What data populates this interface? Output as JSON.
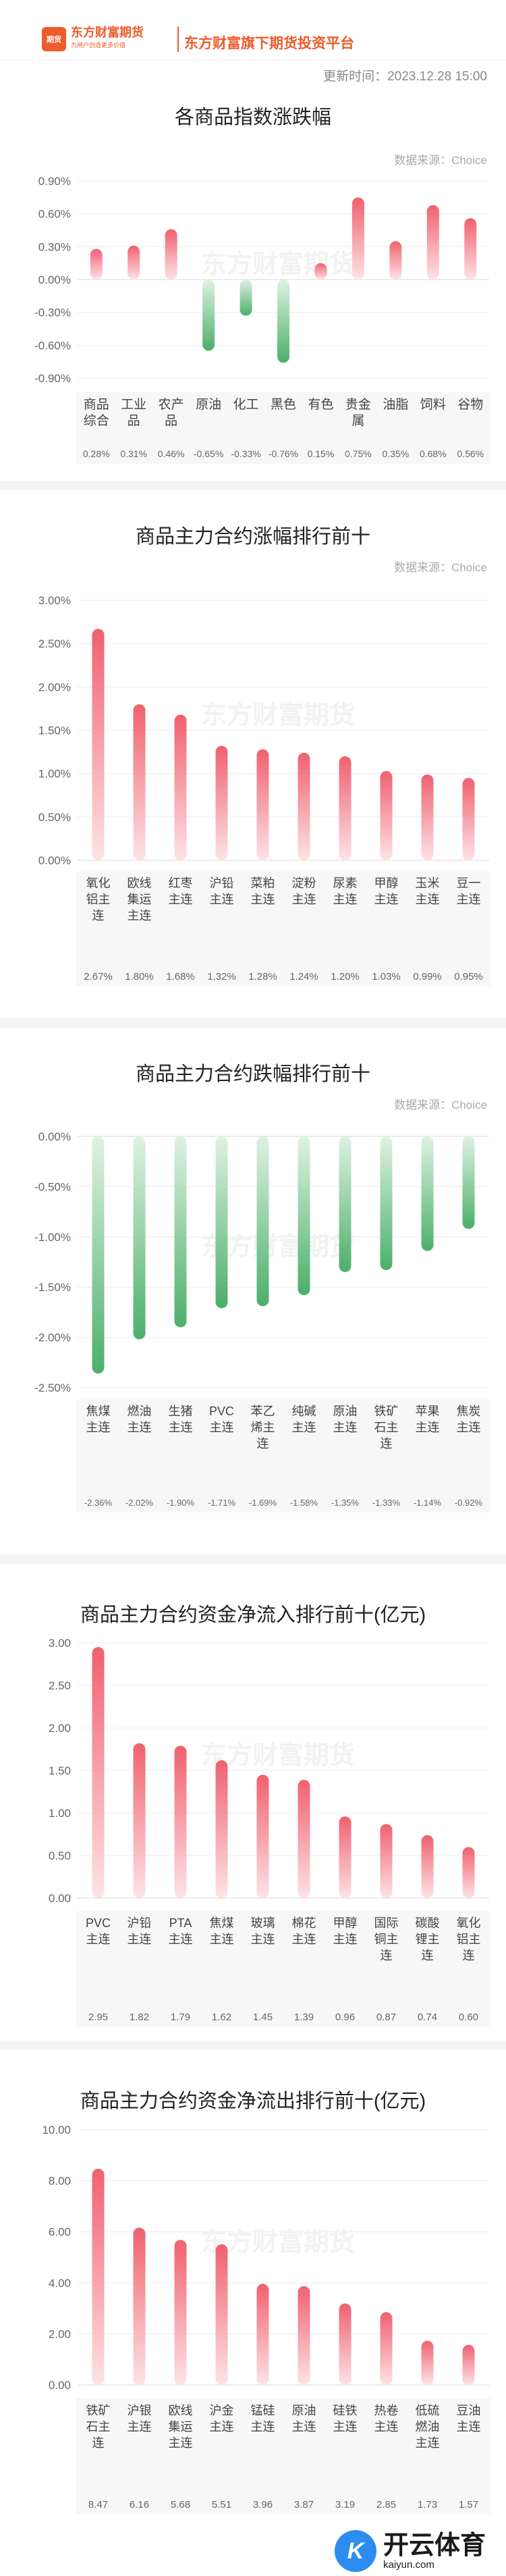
{
  "header": {
    "logo_mark": "期货",
    "logo_name": "东方财富期货",
    "logo_slogan": "为用户创造更多价值",
    "platform": "东方财富旗下期货投资平台",
    "update_time": "更新时间：2023.12.28 15:00"
  },
  "charts": [
    {
      "title": "各商品指数涨跌幅",
      "source": "数据来源：Choice",
      "watermark": "东方财富期货",
      "chart_data": {
        "type": "bar",
        "categories": [
          "商品\n综合",
          "工业\n品",
          "农产\n品",
          "原油",
          "化工",
          "黑色",
          "有色",
          "贵金\n属",
          "油脂",
          "饲料",
          "谷物"
        ],
        "values": [
          0.28,
          0.31,
          0.46,
          -0.65,
          -0.33,
          -0.76,
          0.15,
          0.75,
          0.35,
          0.68,
          0.56
        ],
        "value_labels": [
          "0.28%",
          "0.31%",
          "0.46%",
          "-0.65%",
          "-0.33%",
          "-0.76%",
          "0.15%",
          "0.75%",
          "0.35%",
          "0.68%",
          "0.56%"
        ],
        "yticks": [
          0.9,
          0.6,
          0.3,
          0,
          -0.3,
          -0.6,
          -0.9
        ],
        "ytick_labels": [
          "0.90%",
          "0.60%",
          "0.30%",
          "0.00%",
          "-0.30%",
          "-0.60%",
          "-0.90%"
        ],
        "ylim": [
          -0.9,
          0.9
        ],
        "grid": true,
        "up_color": "#f0616f",
        "down_color": "#4caf6a"
      }
    },
    {
      "title": "商品主力合约涨幅排行前十",
      "source": "数据来源：Choice",
      "watermark": "东方财富期货",
      "chart_data": {
        "type": "bar",
        "categories": [
          "氧化\n铝主\n连",
          "欧线\n集运\n主连",
          "红枣\n主连",
          "沪铅\n主连",
          "菜粕\n主连",
          "淀粉\n主连",
          "尿素\n主连",
          "甲醇\n主连",
          "玉米\n主连",
          "豆一\n主连"
        ],
        "values": [
          2.67,
          1.8,
          1.68,
          1.32,
          1.28,
          1.24,
          1.2,
          1.03,
          0.99,
          0.95
        ],
        "value_labels": [
          "2.67%",
          "1.80%",
          "1.68%",
          "1.32%",
          "1.28%",
          "1.24%",
          "1.20%",
          "1.03%",
          "0.99%",
          "0.95%"
        ],
        "yticks": [
          3.0,
          2.5,
          2.0,
          1.5,
          1.0,
          0.5,
          0
        ],
        "ytick_labels": [
          "3.00%",
          "2.50%",
          "2.00%",
          "1.50%",
          "1.00%",
          "0.50%",
          "0.00%"
        ],
        "ylim": [
          0,
          3.0
        ],
        "grid": true,
        "up_color": "#f0616f",
        "down_color": "#4caf6a"
      }
    },
    {
      "title": "商品主力合约跌幅排行前十",
      "source": "数据来源：Choice",
      "watermark": "东方财富期货",
      "chart_data": {
        "type": "bar",
        "categories": [
          "焦煤\n主连",
          "燃油\n主连",
          "生猪\n主连",
          "PVC\n主连",
          "苯乙\n烯主\n连",
          "纯碱\n主连",
          "原油\n主连",
          "铁矿\n石主\n连",
          "苹果\n主连",
          "焦炭\n主连"
        ],
        "values": [
          -2.36,
          -2.02,
          -1.9,
          -1.71,
          -1.69,
          -1.58,
          -1.35,
          -1.33,
          -1.14,
          -0.92
        ],
        "value_labels": [
          "-2.36%",
          "-2.02%",
          "-1.90%",
          "-1.71%",
          "-1.69%",
          "-1.58%",
          "-1.35%",
          "-1.33%",
          "-1.14%",
          "-0.92%"
        ],
        "yticks": [
          0,
          -0.5,
          -1.0,
          -1.5,
          -2.0,
          -2.5
        ],
        "ytick_labels": [
          "0.00%",
          "-0.50%",
          "-1.00%",
          "-1.50%",
          "-2.00%",
          "-2.50%"
        ],
        "ylim": [
          -2.5,
          0
        ],
        "grid": true,
        "up_color": "#f0616f",
        "down_color": "#4caf6a"
      }
    },
    {
      "title": "商品主力合约资金净流入排行前十(亿元)",
      "source": "数据来源：Choice",
      "watermark": "东方财富期货",
      "chart_data": {
        "type": "bar",
        "categories": [
          "PVC\n主连",
          "沪铅\n主连",
          "PTA\n主连",
          "焦煤\n主连",
          "玻璃\n主连",
          "棉花\n主连",
          "甲醇\n主连",
          "国际\n铜主\n连",
          "碳酸\n锂主\n连",
          "氧化\n铝主\n连"
        ],
        "values": [
          2.95,
          1.82,
          1.79,
          1.62,
          1.45,
          1.39,
          0.96,
          0.87,
          0.74,
          0.6
        ],
        "value_labels": [
          "2.95",
          "1.82",
          "1.79",
          "1.62",
          "1.45",
          "1.39",
          "0.96",
          "0.87",
          "0.74",
          "0.60"
        ],
        "yticks": [
          3.0,
          2.5,
          2.0,
          1.5,
          1.0,
          0.5,
          0
        ],
        "ytick_labels": [
          "3.00",
          "2.50",
          "2.00",
          "1.50",
          "1.00",
          "0.50",
          "0.00"
        ],
        "ylim": [
          0,
          3.0
        ],
        "grid": true,
        "up_color": "#f0616f",
        "down_color": "#4caf6a"
      }
    },
    {
      "title": "商品主力合约资金净流出排行前十(亿元)",
      "source": "数据来源：Choice",
      "watermark": "东方财富期货",
      "chart_data": {
        "type": "bar",
        "categories": [
          "铁矿\n石主\n连",
          "沪银\n主连",
          "欧线\n集运\n主连",
          "沪金\n主连",
          "锰硅\n主连",
          "原油\n主连",
          "硅铁\n主连",
          "热卷\n主连",
          "低硫\n燃油\n主连",
          "豆油\n主连"
        ],
        "values": [
          8.47,
          6.16,
          5.68,
          5.51,
          3.96,
          3.87,
          3.19,
          2.85,
          1.73,
          1.57
        ],
        "value_labels": [
          "8.47",
          "6.16",
          "5.68",
          "5.51",
          "3.96",
          "3.87",
          "3.19",
          "2.85",
          "1.73",
          "1.57"
        ],
        "yticks": [
          10,
          8,
          6,
          4,
          2,
          0
        ],
        "ytick_labels": [
          "10.00",
          "8.00",
          "6.00",
          "4.00",
          "2.00",
          "0.00"
        ],
        "ylim": [
          0,
          10
        ],
        "grid": true,
        "up_color": "#f0616f",
        "down_color": "#4caf6a"
      }
    }
  ],
  "footer_brand": {
    "mark": "K",
    "name": "开云体育",
    "domain": "kaiyun.com"
  }
}
